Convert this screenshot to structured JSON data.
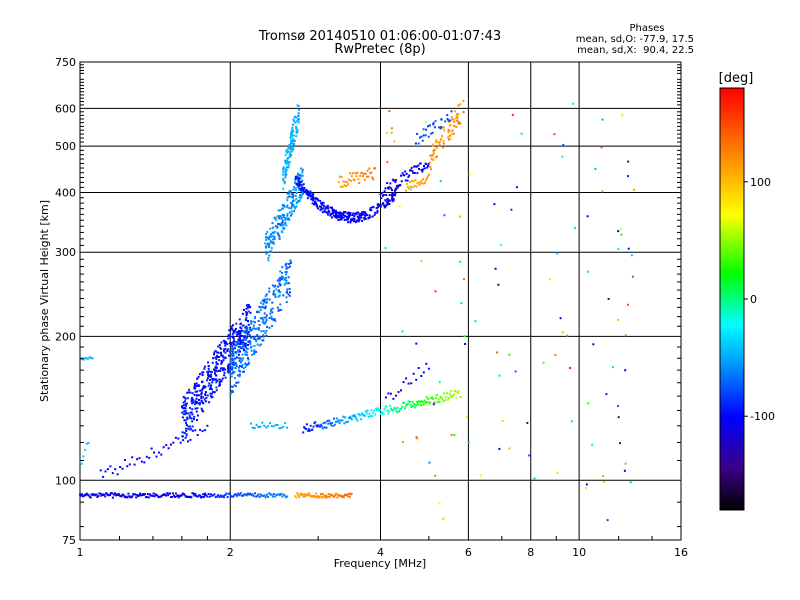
{
  "chart_data": {
    "type": "scatter",
    "title": "Tromsø 20140510 01:06:00-01:07:43",
    "subtitle": "RwPretec (8p)",
    "xlabel": "Frequency [MHz]",
    "ylabel": "Stationary phase Virtual Height [km]",
    "x_scale": "log",
    "y_scale": "log",
    "xlim": [
      1,
      16
    ],
    "ylim": [
      75,
      750
    ],
    "x_ticks": [
      {
        "value": 1,
        "label": "1"
      },
      {
        "value": 2,
        "label": "2"
      },
      {
        "value": 4,
        "label": "4"
      },
      {
        "value": 6,
        "label": "6"
      },
      {
        "value": 8,
        "label": "8"
      },
      {
        "value": 10,
        "label": "10"
      },
      {
        "value": 16,
        "label": "16"
      }
    ],
    "y_ticks": [
      {
        "value": 75,
        "label": "75"
      },
      {
        "value": 100,
        "label": "100"
      },
      {
        "value": 200,
        "label": "200"
      },
      {
        "value": 300,
        "label": "300"
      },
      {
        "value": 400,
        "label": "400"
      },
      {
        "value": 500,
        "label": "500"
      },
      {
        "value": 600,
        "label": "600"
      },
      {
        "value": 750,
        "label": "750"
      }
    ],
    "grid": true,
    "phase_stats": {
      "heading": "Phases",
      "line_o": "mean, sd,O: -77.9, 17.5",
      "line_x": "mean, sd,X:  90.4, 22.5"
    },
    "colorbar": {
      "label": "[deg]",
      "min": -180,
      "max": 180,
      "ticks": [
        {
          "value": 100,
          "label": "100"
        },
        {
          "value": 0,
          "label": "0"
        },
        {
          "value": -100,
          "label": "-100"
        }
      ]
    },
    "traces": [
      {
        "kind": "line",
        "x0": 1.0,
        "x1": 1.78,
        "y0": 93,
        "y1": 93,
        "phase0": -108,
        "phase1": -108,
        "n": 130,
        "jitter": 1
      },
      {
        "kind": "line",
        "x0": 1.78,
        "x1": 2.6,
        "y0": 93,
        "y1": 93,
        "phase0": -95,
        "phase1": -60,
        "n": 70,
        "jitter": 1
      },
      {
        "kind": "line",
        "x0": 2.7,
        "x1": 3.5,
        "y0": 93,
        "y1": 93,
        "phase0": 110,
        "phase1": 135,
        "n": 60,
        "jitter": 1
      },
      {
        "kind": "line",
        "x0": 1.0,
        "x1": 1.06,
        "y0": 180,
        "y1": 180,
        "phase0": -45,
        "phase1": -45,
        "n": 10,
        "jitter": 1
      },
      {
        "kind": "line",
        "x0": 1.0,
        "x1": 1.04,
        "y0": 108,
        "y1": 120,
        "phase0": -40,
        "phase1": -40,
        "n": 6,
        "jitter": 2
      },
      {
        "kind": "line",
        "x0": 1.1,
        "x1": 1.8,
        "y0": 102,
        "y1": 128,
        "phase0": -105,
        "phase1": -100,
        "n": 45,
        "jitter": 3
      },
      {
        "kind": "cloud",
        "x0": 1.6,
        "x1": 2.2,
        "y0": 120,
        "y1": 240,
        "phase0": -108,
        "phase1": -85,
        "n": 420,
        "jitter": 0.03
      },
      {
        "kind": "cloud",
        "x0": 2.0,
        "x1": 2.65,
        "y0": 150,
        "y1": 300,
        "phase0": -80,
        "phase1": -55,
        "n": 300,
        "jitter": 0.03
      },
      {
        "kind": "cloud",
        "x0": 2.35,
        "x1": 2.8,
        "y0": 280,
        "y1": 460,
        "phase0": -70,
        "phase1": -45,
        "n": 200,
        "jitter": 0.02
      },
      {
        "kind": "cloud",
        "x0": 2.55,
        "x1": 2.75,
        "y0": 400,
        "y1": 640,
        "phase0": -55,
        "phase1": -40,
        "n": 110,
        "jitter": 0.01
      },
      {
        "kind": "line",
        "x0": 2.2,
        "x1": 2.6,
        "y0": 130,
        "y1": 130,
        "phase0": -50,
        "phase1": -45,
        "n": 20,
        "jitter": 2
      },
      {
        "kind": "curve",
        "x0": 2.7,
        "x1": 4.3,
        "y0": 430,
        "ymid": 355,
        "y1": 400,
        "phase0": -95,
        "phase1": -110,
        "n": 300,
        "jitter": 0.025
      },
      {
        "kind": "line",
        "x0": 3.3,
        "x1": 3.9,
        "y0": 420,
        "y1": 440,
        "phase0": 110,
        "phase1": 130,
        "n": 40,
        "jitter": 0.03
      },
      {
        "kind": "line",
        "x0": 4.0,
        "x1": 5.0,
        "y0": 400,
        "y1": 460,
        "phase0": -110,
        "phase1": -100,
        "n": 60,
        "jitter": 0.03
      },
      {
        "kind": "line",
        "x0": 4.5,
        "x1": 5.0,
        "y0": 410,
        "y1": 430,
        "phase0": 110,
        "phase1": 115,
        "n": 25,
        "jitter": 0.02
      },
      {
        "kind": "cloud",
        "x0": 5.0,
        "x1": 5.9,
        "y0": 440,
        "y1": 640,
        "phase0": 100,
        "phase1": 140,
        "n": 70,
        "jitter": 0.02
      },
      {
        "kind": "cloud",
        "x0": 4.7,
        "x1": 5.6,
        "y0": 500,
        "y1": 600,
        "phase0": -90,
        "phase1": -70,
        "n": 30,
        "jitter": 0.02
      },
      {
        "kind": "line",
        "x0": 2.8,
        "x1": 5.8,
        "y0": 128,
        "y1": 152,
        "phase0": -95,
        "phase1": 60,
        "n": 170,
        "jitter": 0.02
      },
      {
        "kind": "line",
        "x0": 4.1,
        "x1": 5.0,
        "y0": 148,
        "y1": 175,
        "phase0": -110,
        "phase1": -100,
        "n": 18,
        "jitter": 0.03
      },
      {
        "kind": "scatter",
        "x0": 4.0,
        "x1": 13.0,
        "y0": 80,
        "y1": 640,
        "phase0": -150,
        "phase1": 170,
        "n": 110,
        "jitter": 0
      }
    ]
  }
}
